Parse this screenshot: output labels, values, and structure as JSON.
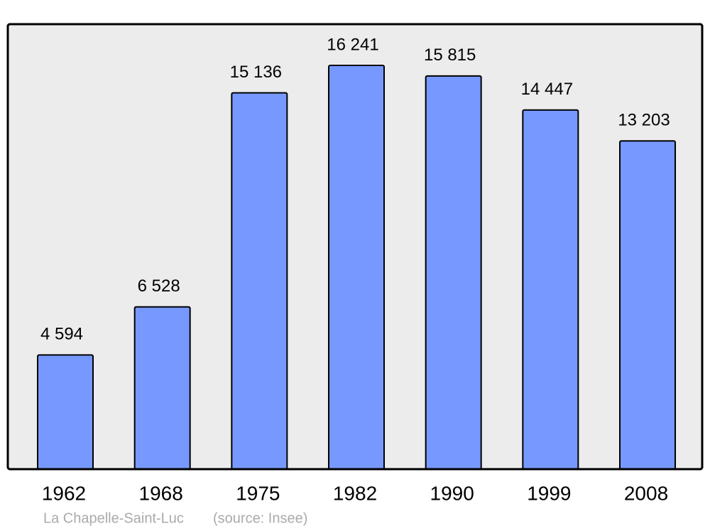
{
  "chart_data": {
    "type": "bar",
    "categories": [
      "1962",
      "1968",
      "1975",
      "1982",
      "1990",
      "1999",
      "2008"
    ],
    "values": [
      4594,
      6528,
      15136,
      16241,
      15815,
      14447,
      13203
    ],
    "value_labels": [
      "4 594",
      "6 528",
      "15 136",
      "16 241",
      "15 815",
      "14 447",
      "13 203"
    ],
    "color": "#7799ff",
    "caption": "La Chapelle-Saint-Luc",
    "source": "(source: Insee)"
  }
}
